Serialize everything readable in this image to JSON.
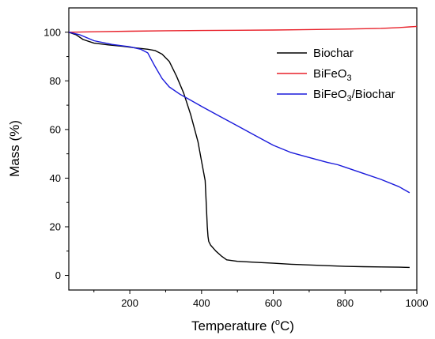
{
  "chart_data": {
    "type": "line",
    "title": "",
    "xlabel": {
      "text": "Temperature (",
      "sup": "o",
      "tail": "C)"
    },
    "ylabel": "Mass (%)",
    "xlim": [
      30,
      1000
    ],
    "ylim": [
      -6,
      110
    ],
    "xticks": [
      200,
      400,
      600,
      800,
      1000
    ],
    "xtick_labels": [
      "200",
      "400",
      "600",
      "800",
      "1000"
    ],
    "xminor": [
      100,
      300,
      500,
      700,
      900
    ],
    "yticks": [
      0,
      20,
      40,
      60,
      80,
      100
    ],
    "ytick_labels": [
      "0",
      "20",
      "40",
      "60",
      "80",
      "100"
    ],
    "yminor": [
      10,
      30,
      50,
      70,
      90
    ],
    "grid": false,
    "legend_position": "top-right",
    "series": [
      {
        "name": "Biochar",
        "legend": {
          "main": "Biochar",
          "sub": "",
          "tail": ""
        },
        "color": "#000000",
        "x": [
          30,
          50,
          70,
          100,
          140,
          180,
          220,
          250,
          270,
          290,
          310,
          330,
          350,
          370,
          390,
          400,
          410,
          413,
          416,
          418,
          420,
          425,
          440,
          455,
          470,
          500,
          550,
          600,
          650,
          700,
          750,
          800,
          850,
          900,
          950,
          980
        ],
        "y": [
          100,
          99,
          97,
          95.5,
          94.8,
          94.2,
          93.5,
          93,
          92.5,
          91,
          88,
          82,
          75,
          66,
          55,
          47,
          39,
          30,
          20,
          16,
          14,
          12.5,
          10,
          8,
          6.4,
          5.8,
          5.4,
          5,
          4.6,
          4.3,
          4,
          3.7,
          3.6,
          3.5,
          3.4,
          3.3
        ]
      },
      {
        "name": "BiFeO3",
        "legend": {
          "main": "BiFeO",
          "sub": "3",
          "tail": ""
        },
        "color": "#e8212a",
        "x": [
          30,
          100,
          200,
          300,
          400,
          500,
          600,
          700,
          800,
          900,
          950,
          980,
          1000
        ],
        "y": [
          100,
          100.2,
          100.4,
          100.6,
          100.7,
          100.8,
          100.9,
          101.1,
          101.3,
          101.6,
          101.9,
          102.2,
          102.4
        ]
      },
      {
        "name": "BiFeO3/Biochar",
        "legend": {
          "main": "BiFeO",
          "sub": "3",
          "tail": "/Biochar"
        },
        "color": "#1a1adb",
        "x": [
          30,
          60,
          100,
          150,
          200,
          230,
          250,
          270,
          290,
          310,
          340,
          370,
          400,
          450,
          500,
          550,
          600,
          650,
          700,
          750,
          780,
          800,
          850,
          900,
          950,
          980
        ],
        "y": [
          100,
          99,
          96.5,
          95,
          94,
          93,
          91.5,
          86,
          81,
          77.5,
          74.5,
          72,
          69.5,
          65.5,
          61.5,
          57.5,
          53.5,
          50.5,
          48.5,
          46.5,
          45.5,
          44.5,
          42,
          39.5,
          36.5,
          34
        ]
      }
    ]
  }
}
